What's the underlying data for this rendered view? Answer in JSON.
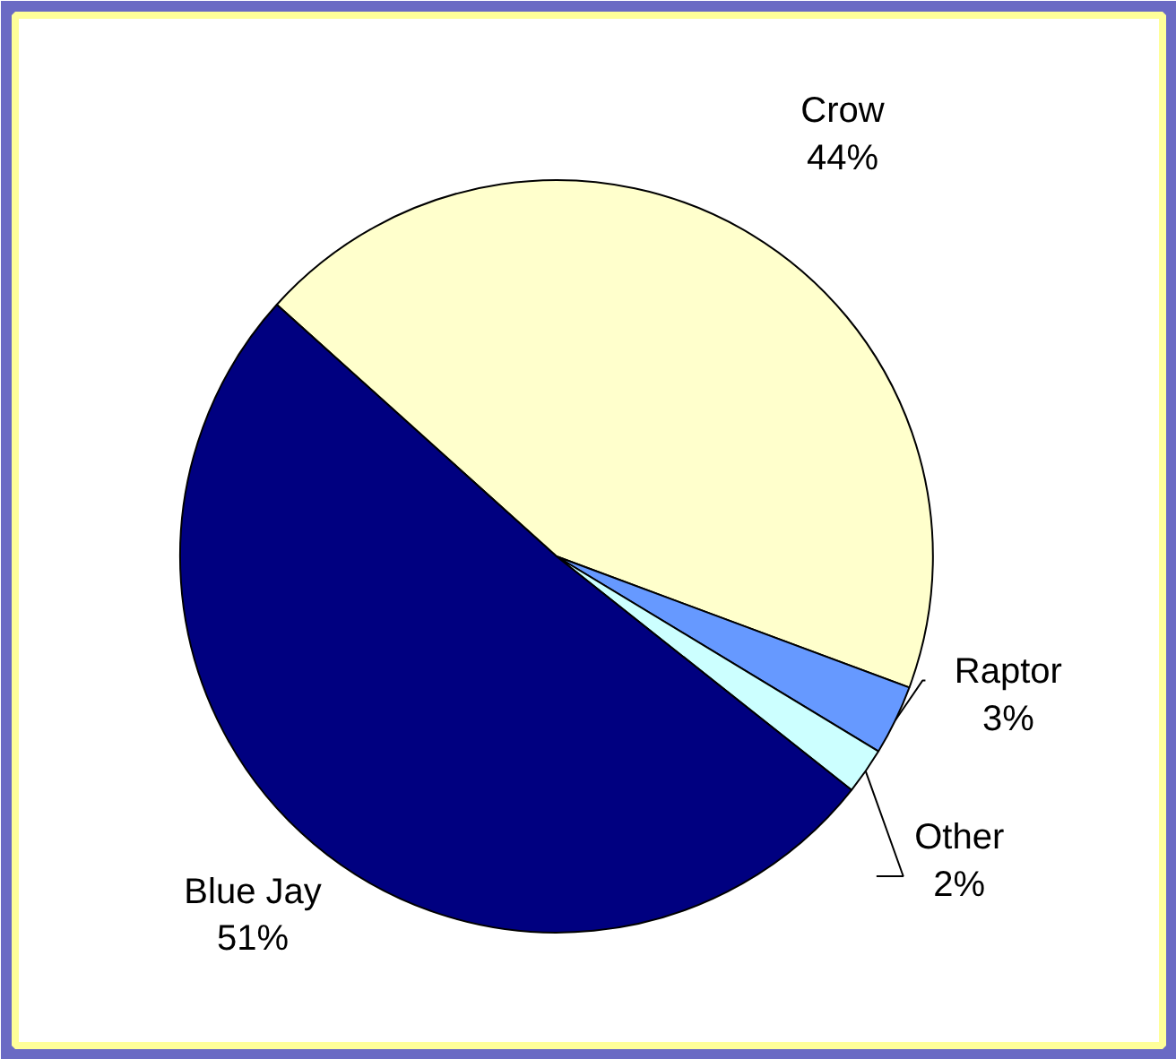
{
  "chart_data": {
    "type": "pie",
    "categories": [
      "Crow",
      "Raptor",
      "Other",
      "Blue Jay"
    ],
    "values": [
      44,
      3,
      2,
      51
    ],
    "value_labels": [
      "44%",
      "3%",
      "2%",
      "51%"
    ],
    "colors": [
      "#ffffcc",
      "#6699ff",
      "#ccffff",
      "#000080"
    ]
  }
}
